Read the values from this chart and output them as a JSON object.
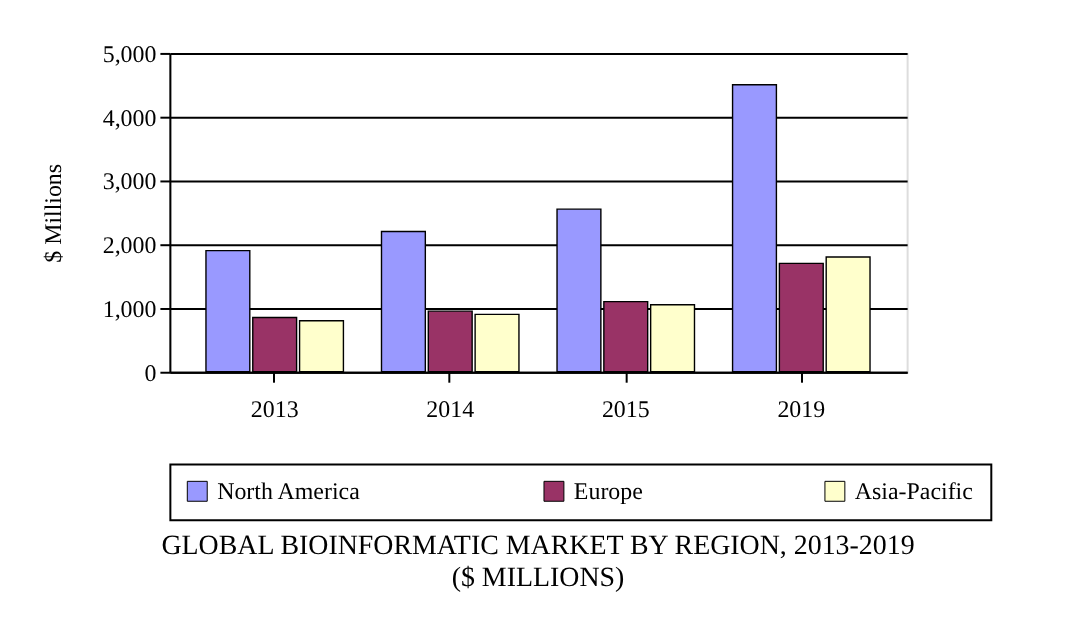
{
  "chart_data": {
    "type": "bar",
    "title": [
      "GLOBAL BIOINFORMATIC MARKET BY REGION, 2013-2019",
      "($ MILLIONS)"
    ],
    "ylabel": "$ Millions",
    "categories": [
      "2013",
      "2014",
      "2015",
      "2019"
    ],
    "series": [
      {
        "name": "North America",
        "color": "#9999ff",
        "values": [
          1900,
          2200,
          2550,
          4500
        ]
      },
      {
        "name": "Europe",
        "color": "#993366",
        "values": [
          850,
          950,
          1100,
          1700
        ]
      },
      {
        "name": "Asia-Pacific",
        "color": "#ffffcc",
        "values": [
          800,
          900,
          1050,
          1800
        ]
      }
    ],
    "ylim": [
      0,
      5000
    ],
    "yticks": [
      0,
      {
        "value": 1000,
        "label": "1,000"
      },
      {
        "value": 2000,
        "label": "2,000"
      },
      {
        "value": 3000,
        "label": "3,000"
      },
      {
        "value": 4000,
        "label": "4,000"
      },
      {
        "value": 5000,
        "label": "5,000"
      }
    ],
    "grid": "y",
    "legend": "bottom"
  }
}
